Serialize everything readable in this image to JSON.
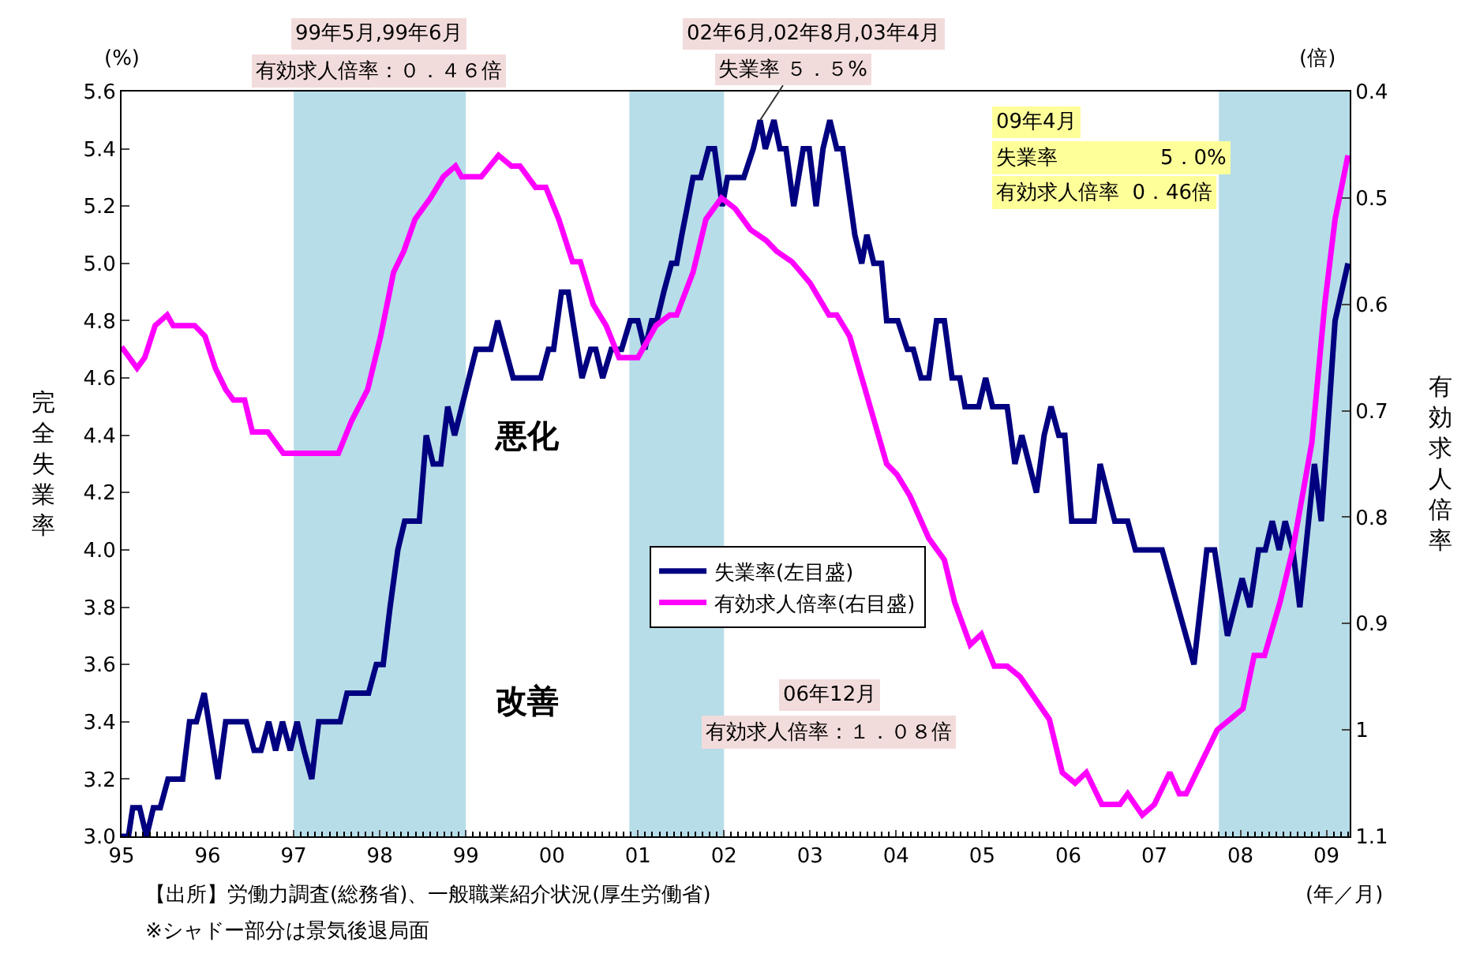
{
  "chart_data": {
    "type": "line",
    "xlabel": "(年／月)",
    "ylabel": "完全失業率",
    "y2label": "有効求人倍率",
    "xlim": [
      1995,
      2009.27
    ],
    "xticks": [
      {
        "value": 1995,
        "label": "95"
      },
      {
        "value": 1996,
        "label": "96"
      },
      {
        "value": 1997,
        "label": "97"
      },
      {
        "value": 1998,
        "label": "98"
      },
      {
        "value": 1999,
        "label": "99"
      },
      {
        "value": 2000,
        "label": "00"
      },
      {
        "value": 2001,
        "label": "01"
      },
      {
        "value": 2002,
        "label": "02"
      },
      {
        "value": 2003,
        "label": "03"
      },
      {
        "value": 2004,
        "label": "04"
      },
      {
        "value": 2005,
        "label": "05"
      },
      {
        "value": 2006,
        "label": "06"
      },
      {
        "value": 2007,
        "label": "07"
      },
      {
        "value": 2008,
        "label": "08"
      },
      {
        "value": 2009,
        "label": "09"
      }
    ],
    "ylim": [
      3.0,
      5.6
    ],
    "yticks": [
      {
        "value": 3,
        "label": "3.0"
      },
      3.2,
      3.4,
      3.6,
      3.8,
      {
        "value": 4,
        "label": "4.0"
      },
      4.2,
      4.4,
      4.6,
      4.8,
      {
        "value": 5,
        "label": "5.0"
      },
      5.2,
      5.4,
      5.6
    ],
    "y2lim": [
      1.1,
      0.4
    ],
    "y2ticks": [
      0.4,
      0.5,
      0.6,
      0.7,
      0.8,
      0.9,
      1,
      1.1
    ],
    "grid": false,
    "legend": "center",
    "line_style": "solid",
    "bands": [
      {
        "axis": "x",
        "from": 1997.0,
        "to": 1999.0,
        "color": "#b7dde8"
      },
      {
        "axis": "x",
        "from": 2000.9,
        "to": 2002.0,
        "color": "#b7dde8"
      },
      {
        "axis": "x",
        "from": 2007.75,
        "to": 2009.27,
        "color": "#b7dde8"
      }
    ],
    "series": [
      {
        "name": "失業率(左目盛)",
        "color": "#000080",
        "x": [
          1995.0,
          1995.08,
          1995.13,
          1995.21,
          1995.29,
          1995.37,
          1995.45,
          1995.54,
          1995.71,
          1995.79,
          1995.87,
          1995.96,
          1996.12,
          1996.21,
          1996.45,
          1996.54,
          1996.62,
          1996.71,
          1996.79,
          1996.87,
          1996.96,
          1997.04,
          1997.12,
          1997.21,
          1997.29,
          1997.54,
          1997.62,
          1997.87,
          1997.96,
          1998.04,
          1998.12,
          1998.21,
          1998.29,
          1998.46,
          1998.54,
          1998.62,
          1998.71,
          1998.79,
          1998.87,
          1999.12,
          1999.29,
          1999.37,
          1999.55,
          1999.63,
          1999.87,
          1999.96,
          2000.02,
          2000.11,
          2000.19,
          2000.35,
          2000.45,
          2000.51,
          2000.59,
          2000.69,
          2000.81,
          2000.91,
          2001.0,
          2001.08,
          2001.16,
          2001.22,
          2001.3,
          2001.39,
          2001.45,
          2001.51,
          2001.64,
          2001.73,
          2001.82,
          2001.89,
          2001.98,
          2002.04,
          2002.23,
          2002.34,
          2002.42,
          2002.48,
          2002.58,
          2002.65,
          2002.72,
          2002.81,
          2002.92,
          2002.99,
          2003.07,
          2003.15,
          2003.23,
          2003.31,
          2003.38,
          2003.52,
          2003.6,
          2003.66,
          2003.74,
          2003.83,
          2003.89,
          2004.02,
          2004.13,
          2004.2,
          2004.29,
          2004.38,
          2004.47,
          2004.56,
          2004.65,
          2004.74,
          2004.8,
          2004.96,
          2005.04,
          2005.12,
          2005.29,
          2005.38,
          2005.46,
          2005.63,
          2005.72,
          2005.8,
          2005.89,
          2005.96,
          2006.04,
          2006.3,
          2006.37,
          2006.54,
          2006.69,
          2006.78,
          2007.09,
          2007.46,
          2007.61,
          2007.7,
          2007.85,
          2008.02,
          2008.11,
          2008.21,
          2008.29,
          2008.37,
          2008.45,
          2008.52,
          2008.61,
          2008.69,
          2008.86,
          2008.94,
          2009.1,
          2009.25
        ],
        "values": [
          3.0,
          3.0,
          3.1,
          3.1,
          3.0,
          3.1,
          3.1,
          3.2,
          3.2,
          3.4,
          3.4,
          3.5,
          3.2,
          3.4,
          3.4,
          3.3,
          3.3,
          3.4,
          3.3,
          3.4,
          3.3,
          3.4,
          3.3,
          3.2,
          3.4,
          3.4,
          3.5,
          3.5,
          3.6,
          3.6,
          3.8,
          4.0,
          4.1,
          4.1,
          4.4,
          4.3,
          4.3,
          4.5,
          4.4,
          4.7,
          4.7,
          4.8,
          4.6,
          4.6,
          4.6,
          4.7,
          4.7,
          4.9,
          4.9,
          4.6,
          4.7,
          4.7,
          4.6,
          4.7,
          4.7,
          4.8,
          4.8,
          4.7,
          4.8,
          4.8,
          4.9,
          5.0,
          5.0,
          5.1,
          5.3,
          5.3,
          5.4,
          5.4,
          5.2,
          5.3,
          5.3,
          5.4,
          5.5,
          5.4,
          5.5,
          5.4,
          5.4,
          5.2,
          5.4,
          5.4,
          5.2,
          5.4,
          5.5,
          5.4,
          5.4,
          5.1,
          5.0,
          5.1,
          5.0,
          5.0,
          4.8,
          4.8,
          4.7,
          4.7,
          4.6,
          4.6,
          4.8,
          4.8,
          4.6,
          4.6,
          4.5,
          4.5,
          4.6,
          4.5,
          4.5,
          4.3,
          4.4,
          4.2,
          4.4,
          4.5,
          4.4,
          4.4,
          4.1,
          4.1,
          4.3,
          4.1,
          4.1,
          4.0,
          4.0,
          3.6,
          4.0,
          4.0,
          3.7,
          3.9,
          3.8,
          4.0,
          4.0,
          4.1,
          4.0,
          4.1,
          4.0,
          3.8,
          4.3,
          4.1,
          4.8,
          5.0
        ]
      },
      {
        "name": "有効求人倍率(右目盛)",
        "color": "#ff00ff",
        "axis": "y2",
        "x": [
          1995.0,
          1995.18,
          1995.27,
          1995.39,
          1995.53,
          1995.6,
          1995.85,
          1995.97,
          1996.09,
          1996.21,
          1996.3,
          1996.43,
          1996.52,
          1996.7,
          1996.88,
          1997.52,
          1997.67,
          1997.86,
          1998.01,
          1998.16,
          1998.28,
          1998.41,
          1998.59,
          1998.74,
          1998.88,
          1998.95,
          1999.18,
          1999.38,
          1999.53,
          1999.63,
          1999.81,
          1999.93,
          2000.08,
          2000.24,
          2000.33,
          2000.48,
          2000.63,
          2000.78,
          2001.0,
          2001.21,
          2001.37,
          2001.45,
          2001.64,
          2001.79,
          2001.97,
          2002.13,
          2002.31,
          2002.49,
          2002.61,
          2002.79,
          2003.0,
          2003.22,
          2003.31,
          2003.46,
          2003.64,
          2003.89,
          2004.01,
          2004.16,
          2004.38,
          2004.56,
          2004.68,
          2004.86,
          2004.99,
          2005.14,
          2005.29,
          2005.44,
          2005.78,
          2005.93,
          2006.08,
          2006.21,
          2006.39,
          2006.6,
          2006.69,
          2006.86,
          2007.0,
          2007.18,
          2007.29,
          2007.37,
          2007.73,
          2007.88,
          2008.03,
          2008.16,
          2008.28,
          2008.46,
          2008.61,
          2008.83,
          2008.98,
          2009.1,
          2009.25
        ],
        "values": [
          0.64,
          0.66,
          0.65,
          0.62,
          0.61,
          0.62,
          0.62,
          0.63,
          0.66,
          0.68,
          0.69,
          0.69,
          0.72,
          0.72,
          0.74,
          0.74,
          0.71,
          0.68,
          0.63,
          0.57,
          0.55,
          0.52,
          0.5,
          0.48,
          0.47,
          0.48,
          0.48,
          0.46,
          0.47,
          0.47,
          0.49,
          0.49,
          0.52,
          0.56,
          0.56,
          0.6,
          0.62,
          0.65,
          0.65,
          0.62,
          0.61,
          0.61,
          0.57,
          0.52,
          0.5,
          0.51,
          0.53,
          0.54,
          0.55,
          0.56,
          0.58,
          0.61,
          0.61,
          0.63,
          0.68,
          0.75,
          0.76,
          0.78,
          0.82,
          0.84,
          0.88,
          0.92,
          0.91,
          0.94,
          0.94,
          0.95,
          0.99,
          1.04,
          1.05,
          1.04,
          1.07,
          1.07,
          1.06,
          1.08,
          1.07,
          1.04,
          1.06,
          1.06,
          1.0,
          0.99,
          0.98,
          0.93,
          0.93,
          0.88,
          0.83,
          0.73,
          0.6,
          0.52,
          0.46
        ]
      }
    ],
    "annotations": [
      "99年5月,99年6月",
      "有効求人倍率：０．４６倍",
      "02年6月,02年8月,03年4月",
      {
        "text": "失業率 ５．５%",
        "x": 2002.42,
        "y": 5.5
      },
      "09年4月",
      "失業率　　　　　5．0%",
      "有効求人倍率  0．46倍",
      "06年12月",
      "有効求人倍率：１．０８倍",
      "(%)",
      "(倍)",
      "悪化",
      "改善",
      "【出所】労働力調査(総務省)、一般職業紹介状況(厚生労働省)",
      "※シャドー部分は景気後退局面"
    ]
  }
}
